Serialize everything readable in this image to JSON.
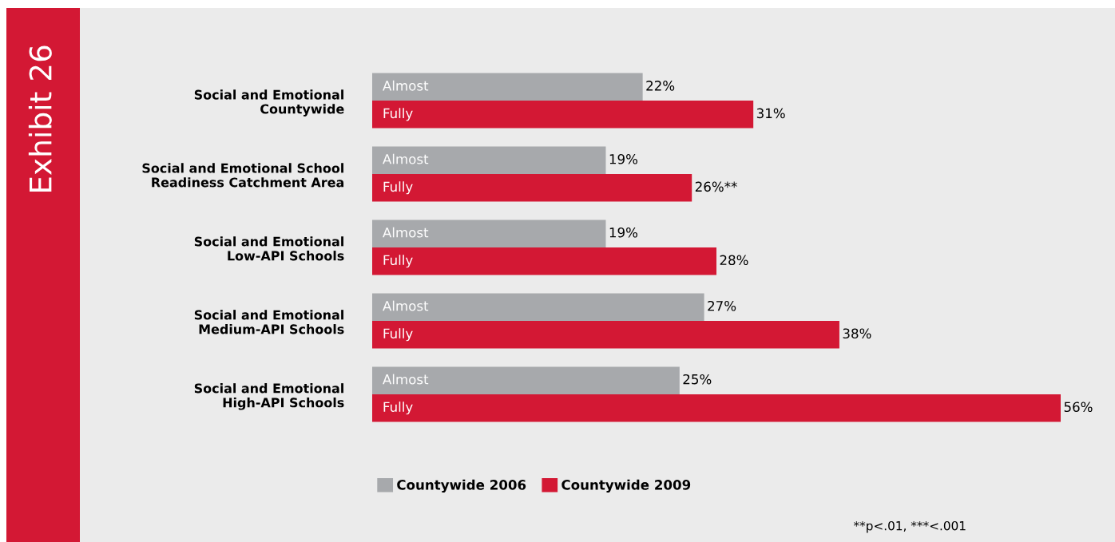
{
  "chart_data": {
    "type": "bar",
    "orientation": "horizontal",
    "title": "Exhibit 26",
    "categories": [
      "Social and Emotional\nCountywide",
      "Social and Emotional School\nReadiness Catchment Area",
      "Social and Emotional\nLow-API Schools",
      "Social and Emotional\nMedium-API Schools",
      "Social and Emotional\nHigh-API Schools"
    ],
    "series": [
      {
        "name": "Countywide 2006",
        "color": "#a7a9ac",
        "values": [
          22,
          19,
          19,
          27,
          25
        ],
        "value_labels": [
          "22%",
          "19%",
          "19%",
          "27%",
          "25%"
        ]
      },
      {
        "name": "Countywide 2009",
        "color": "#d31834",
        "values": [
          31,
          26,
          28,
          38,
          56
        ],
        "value_labels": [
          "31%",
          "26%**",
          "28%",
          "38%",
          "56%"
        ]
      }
    ],
    "annotations": [
      "Almost",
      "Fully",
      "Almost",
      "Fully",
      "Almost",
      "Fully",
      "Almost",
      "Fully",
      "Almost",
      "Fully",
      "**p<.01, ***<.001"
    ],
    "legend": "bottom",
    "grid": false,
    "tick_labels": "y"
  }
}
